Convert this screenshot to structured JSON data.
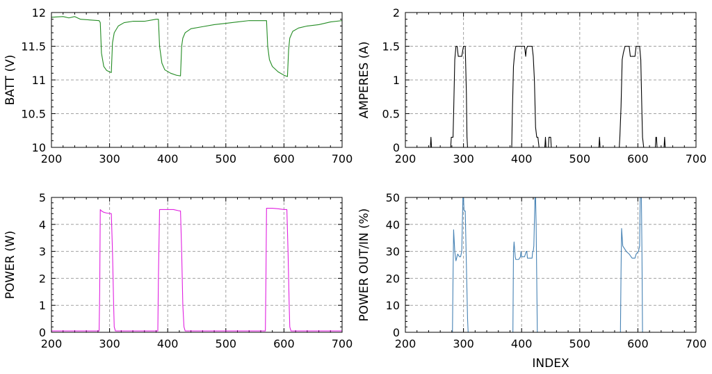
{
  "chart_data": [
    {
      "type": "line",
      "xlabel": "",
      "ylabel": "BATT (V)",
      "xlim": [
        200,
        700
      ],
      "ylim": [
        10,
        12
      ],
      "xticks": [
        "200",
        "300",
        "400",
        "500",
        "600",
        "700"
      ],
      "yticks": [
        "10",
        "10.5",
        "11",
        "11.5",
        "12"
      ],
      "grid": true,
      "series": [
        {
          "name": "BATT",
          "color": "#228b22",
          "x": [
            200,
            220,
            230,
            240,
            250,
            282,
            284,
            286,
            290,
            295,
            300,
            303,
            305,
            308,
            315,
            325,
            340,
            360,
            380,
            384,
            386,
            390,
            395,
            405,
            415,
            422,
            424,
            426,
            430,
            440,
            460,
            480,
            500,
            520,
            540,
            560,
            568,
            570,
            572,
            575,
            580,
            590,
            600,
            606,
            608,
            610,
            615,
            625,
            640,
            660,
            680,
            700
          ],
          "values": [
            11.93,
            11.94,
            11.92,
            11.94,
            11.9,
            11.88,
            11.85,
            11.4,
            11.2,
            11.14,
            11.12,
            11.11,
            11.55,
            11.7,
            11.8,
            11.85,
            11.87,
            11.87,
            11.9,
            11.9,
            11.5,
            11.25,
            11.15,
            11.1,
            11.07,
            11.06,
            11.5,
            11.62,
            11.7,
            11.76,
            11.79,
            11.82,
            11.84,
            11.86,
            11.88,
            11.88,
            11.88,
            11.88,
            11.5,
            11.3,
            11.2,
            11.12,
            11.07,
            11.05,
            11.45,
            11.62,
            11.72,
            11.77,
            11.8,
            11.82,
            11.86,
            11.88
          ]
        }
      ]
    },
    {
      "type": "line",
      "xlabel": "",
      "ylabel": "AMPERES (A)",
      "xlim": [
        200,
        700
      ],
      "ylim": [
        0,
        2
      ],
      "xticks": [
        "200",
        "300",
        "400",
        "500",
        "600",
        "700"
      ],
      "yticks": [
        "0",
        "0.5",
        "1",
        "1.5",
        "2"
      ],
      "grid": true,
      "series": [
        {
          "name": "AMPERES",
          "color": "#000000",
          "x": [
            200,
            243,
            244,
            245,
            246,
            278,
            279,
            282,
            283,
            285,
            287,
            289,
            291,
            295,
            297,
            300,
            303,
            305,
            306,
            307,
            310,
            383,
            384,
            386,
            388,
            390,
            395,
            405,
            407,
            408,
            410,
            412,
            418,
            420,
            422,
            424,
            426,
            428,
            430,
            440,
            441,
            442,
            446,
            447,
            450,
            451,
            452,
            533,
            534,
            535,
            568,
            569,
            571,
            573,
            575,
            578,
            585,
            587,
            595,
            597,
            603,
            605,
            607,
            608,
            610,
            630,
            631,
            632,
            633,
            645,
            646,
            647,
            700
          ],
          "values": [
            0,
            0,
            0.15,
            0,
            0,
            0,
            0.15,
            0.15,
            0.5,
            1.3,
            1.5,
            1.5,
            1.35,
            1.35,
            1.35,
            1.5,
            1.5,
            0.8,
            0.15,
            0,
            0,
            0,
            0.5,
            1.2,
            1.4,
            1.5,
            1.5,
            1.5,
            1.35,
            1.45,
            1.5,
            1.5,
            1.5,
            1.35,
            1.0,
            0.3,
            0.15,
            0.15,
            0,
            0,
            0.15,
            0,
            0,
            0.15,
            0.15,
            0,
            0,
            0,
            0.15,
            0,
            0,
            0.15,
            0.6,
            1.3,
            1.4,
            1.5,
            1.5,
            1.35,
            1.35,
            1.5,
            1.5,
            1.3,
            0.5,
            0.15,
            0,
            0,
            0.15,
            0.15,
            0,
            0,
            0.15,
            0,
            0
          ]
        }
      ]
    },
    {
      "type": "line",
      "xlabel": "",
      "ylabel": "POWER (W)",
      "xlim": [
        200,
        700
      ],
      "ylim": [
        0,
        5
      ],
      "xticks": [
        "200",
        "300",
        "400",
        "500",
        "600",
        "700"
      ],
      "yticks": [
        "0",
        "1",
        "2",
        "3",
        "4",
        "5"
      ],
      "grid": true,
      "series": [
        {
          "name": "POWER",
          "color": "#e020e0",
          "x": [
            200,
            282,
            283,
            284,
            286,
            290,
            295,
            303,
            305,
            307,
            308,
            310,
            312,
            383,
            384,
            386,
            390,
            400,
            410,
            420,
            422,
            424,
            426,
            428,
            430,
            568,
            569,
            570,
            572,
            580,
            590,
            600,
            605,
            607,
            609,
            610,
            612,
            700
          ],
          "values": [
            0.05,
            0.05,
            1.5,
            4.55,
            4.5,
            4.45,
            4.42,
            4.4,
            3.0,
            1.0,
            0.2,
            0.05,
            0.05,
            0.05,
            2.0,
            4.55,
            4.55,
            4.55,
            4.55,
            4.5,
            4.5,
            3.0,
            1.0,
            0.2,
            0.05,
            0.05,
            2.0,
            4.6,
            4.6,
            4.6,
            4.58,
            4.55,
            4.55,
            3.0,
            1.0,
            0.2,
            0.05,
            0.05
          ]
        }
      ]
    },
    {
      "type": "line",
      "xlabel": "INDEX",
      "ylabel": "POWER OUT/IN (%)",
      "xlim": [
        200,
        700
      ],
      "ylim": [
        0,
        50
      ],
      "xticks": [
        "200",
        "300",
        "400",
        "500",
        "600",
        "700"
      ],
      "yticks": [
        "0",
        "10",
        "20",
        "30",
        "40",
        "50"
      ],
      "grid": true,
      "series": [
        {
          "name": "POWER OUT/IN",
          "color": "#4682b4",
          "x": [
            200,
            281,
            282,
            283,
            285,
            287,
            290,
            293,
            295,
            297,
            298,
            299,
            300,
            301,
            303,
            305,
            307,
            308,
            309,
            385,
            386,
            387,
            389,
            390,
            395,
            398,
            399,
            400,
            405,
            408,
            409,
            410,
            412,
            418,
            419,
            420,
            421,
            423,
            424,
            425,
            426,
            427,
            570,
            571,
            572,
            574,
            580,
            585,
            590,
            595,
            597,
            601,
            603,
            604,
            606,
            607,
            608,
            700
          ],
          "values": [
            0,
            0,
            20,
            38,
            30,
            26.5,
            29,
            28,
            28,
            30,
            40,
            50,
            50,
            45,
            45,
            25,
            5,
            0,
            0,
            0,
            30,
            33.5,
            28,
            27,
            27,
            28,
            30,
            28,
            28,
            30,
            30,
            27.5,
            27.5,
            27.5,
            30,
            30,
            32,
            50,
            50,
            40,
            20,
            0,
            0,
            22,
            38.5,
            32,
            30,
            29,
            27.5,
            27.5,
            29,
            30,
            32,
            50,
            50,
            30,
            0,
            0
          ]
        }
      ]
    }
  ]
}
